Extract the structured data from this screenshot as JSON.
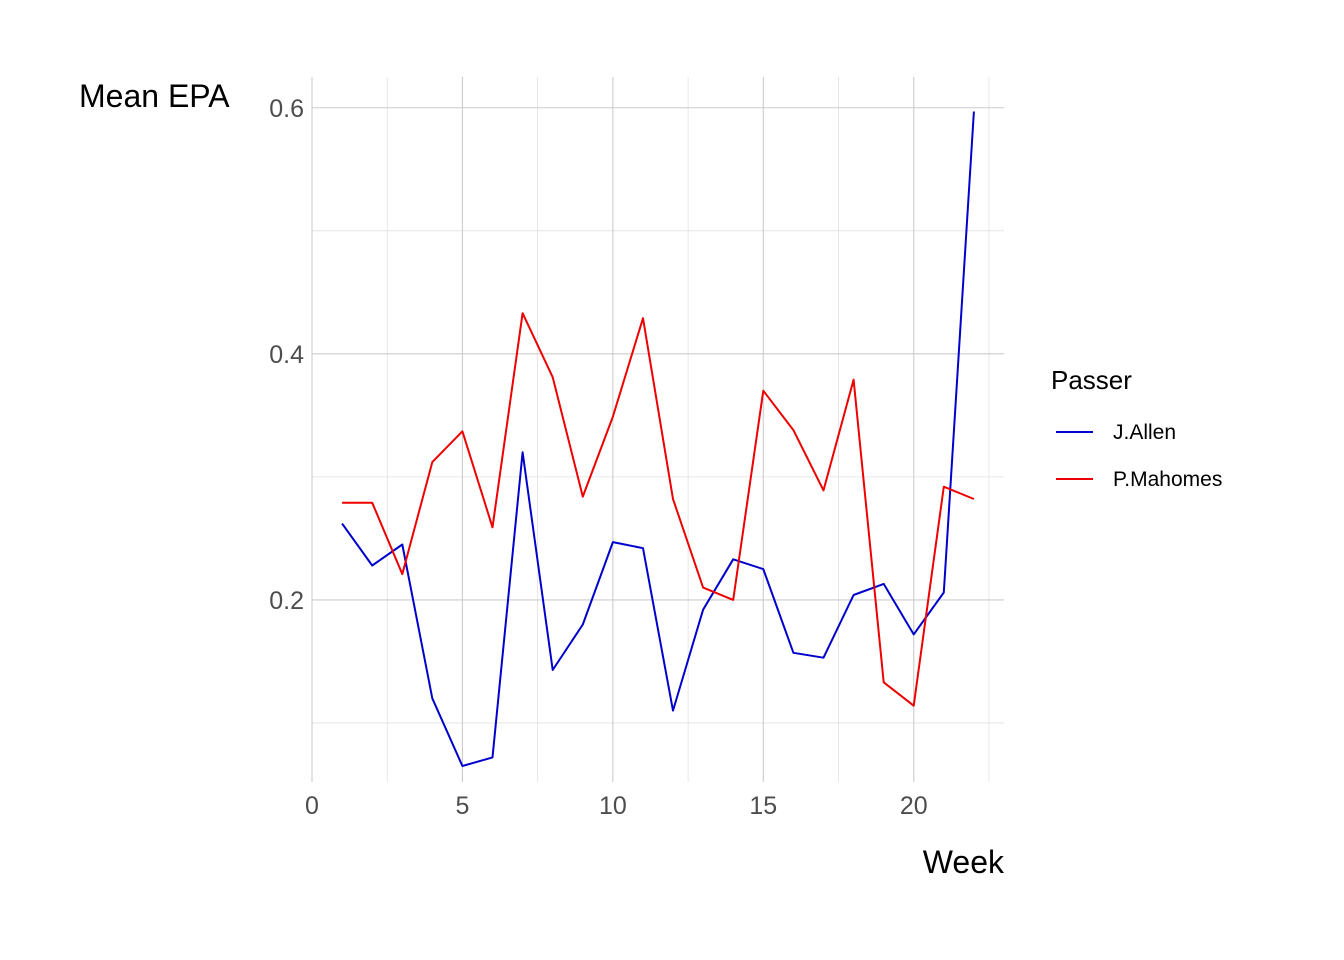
{
  "chart_data": {
    "type": "line",
    "xlabel": "Week",
    "ylabel": "Mean EPA",
    "xlim": [
      0,
      23
    ],
    "ylim": [
      0.052,
      0.625
    ],
    "x_ticks": [
      0,
      5,
      10,
      15,
      20
    ],
    "x_tick_labels": [
      "0",
      "5",
      "10",
      "15",
      "20"
    ],
    "x_minor_ticks": [
      2.5,
      7.5,
      12.5,
      17.5,
      22.5
    ],
    "y_ticks": [
      0.2,
      0.4,
      0.6
    ],
    "y_tick_labels": [
      "0.2",
      "0.4",
      "0.6"
    ],
    "y_minor_ticks": [
      0.1,
      0.3,
      0.5
    ],
    "grid": true,
    "legend": {
      "title": "Passer",
      "placement": "right"
    },
    "series": [
      {
        "name": "J.Allen",
        "color": "#0000cd",
        "x": [
          1,
          2,
          3,
          4,
          5,
          6,
          7,
          8,
          9,
          10,
          11,
          12,
          13,
          14,
          15,
          16,
          17,
          18,
          19,
          20,
          21,
          22
        ],
        "values": [
          0.262,
          0.228,
          0.245,
          0.12,
          0.065,
          0.072,
          0.32,
          0.143,
          0.18,
          0.247,
          0.242,
          0.11,
          0.192,
          0.233,
          0.225,
          0.157,
          0.153,
          0.204,
          0.213,
          0.172,
          0.206,
          0.597
        ]
      },
      {
        "name": "P.Mahomes",
        "color": "#ee0000",
        "x": [
          1,
          2,
          3,
          4,
          5,
          6,
          7,
          8,
          9,
          10,
          11,
          12,
          13,
          14,
          15,
          16,
          17,
          18,
          19,
          20,
          21,
          22
        ],
        "values": [
          0.279,
          0.279,
          0.221,
          0.312,
          0.337,
          0.259,
          0.433,
          0.381,
          0.284,
          0.349,
          0.429,
          0.282,
          0.21,
          0.2,
          0.37,
          0.338,
          0.289,
          0.379,
          0.133,
          0.114,
          0.292,
          0.282
        ]
      }
    ]
  }
}
